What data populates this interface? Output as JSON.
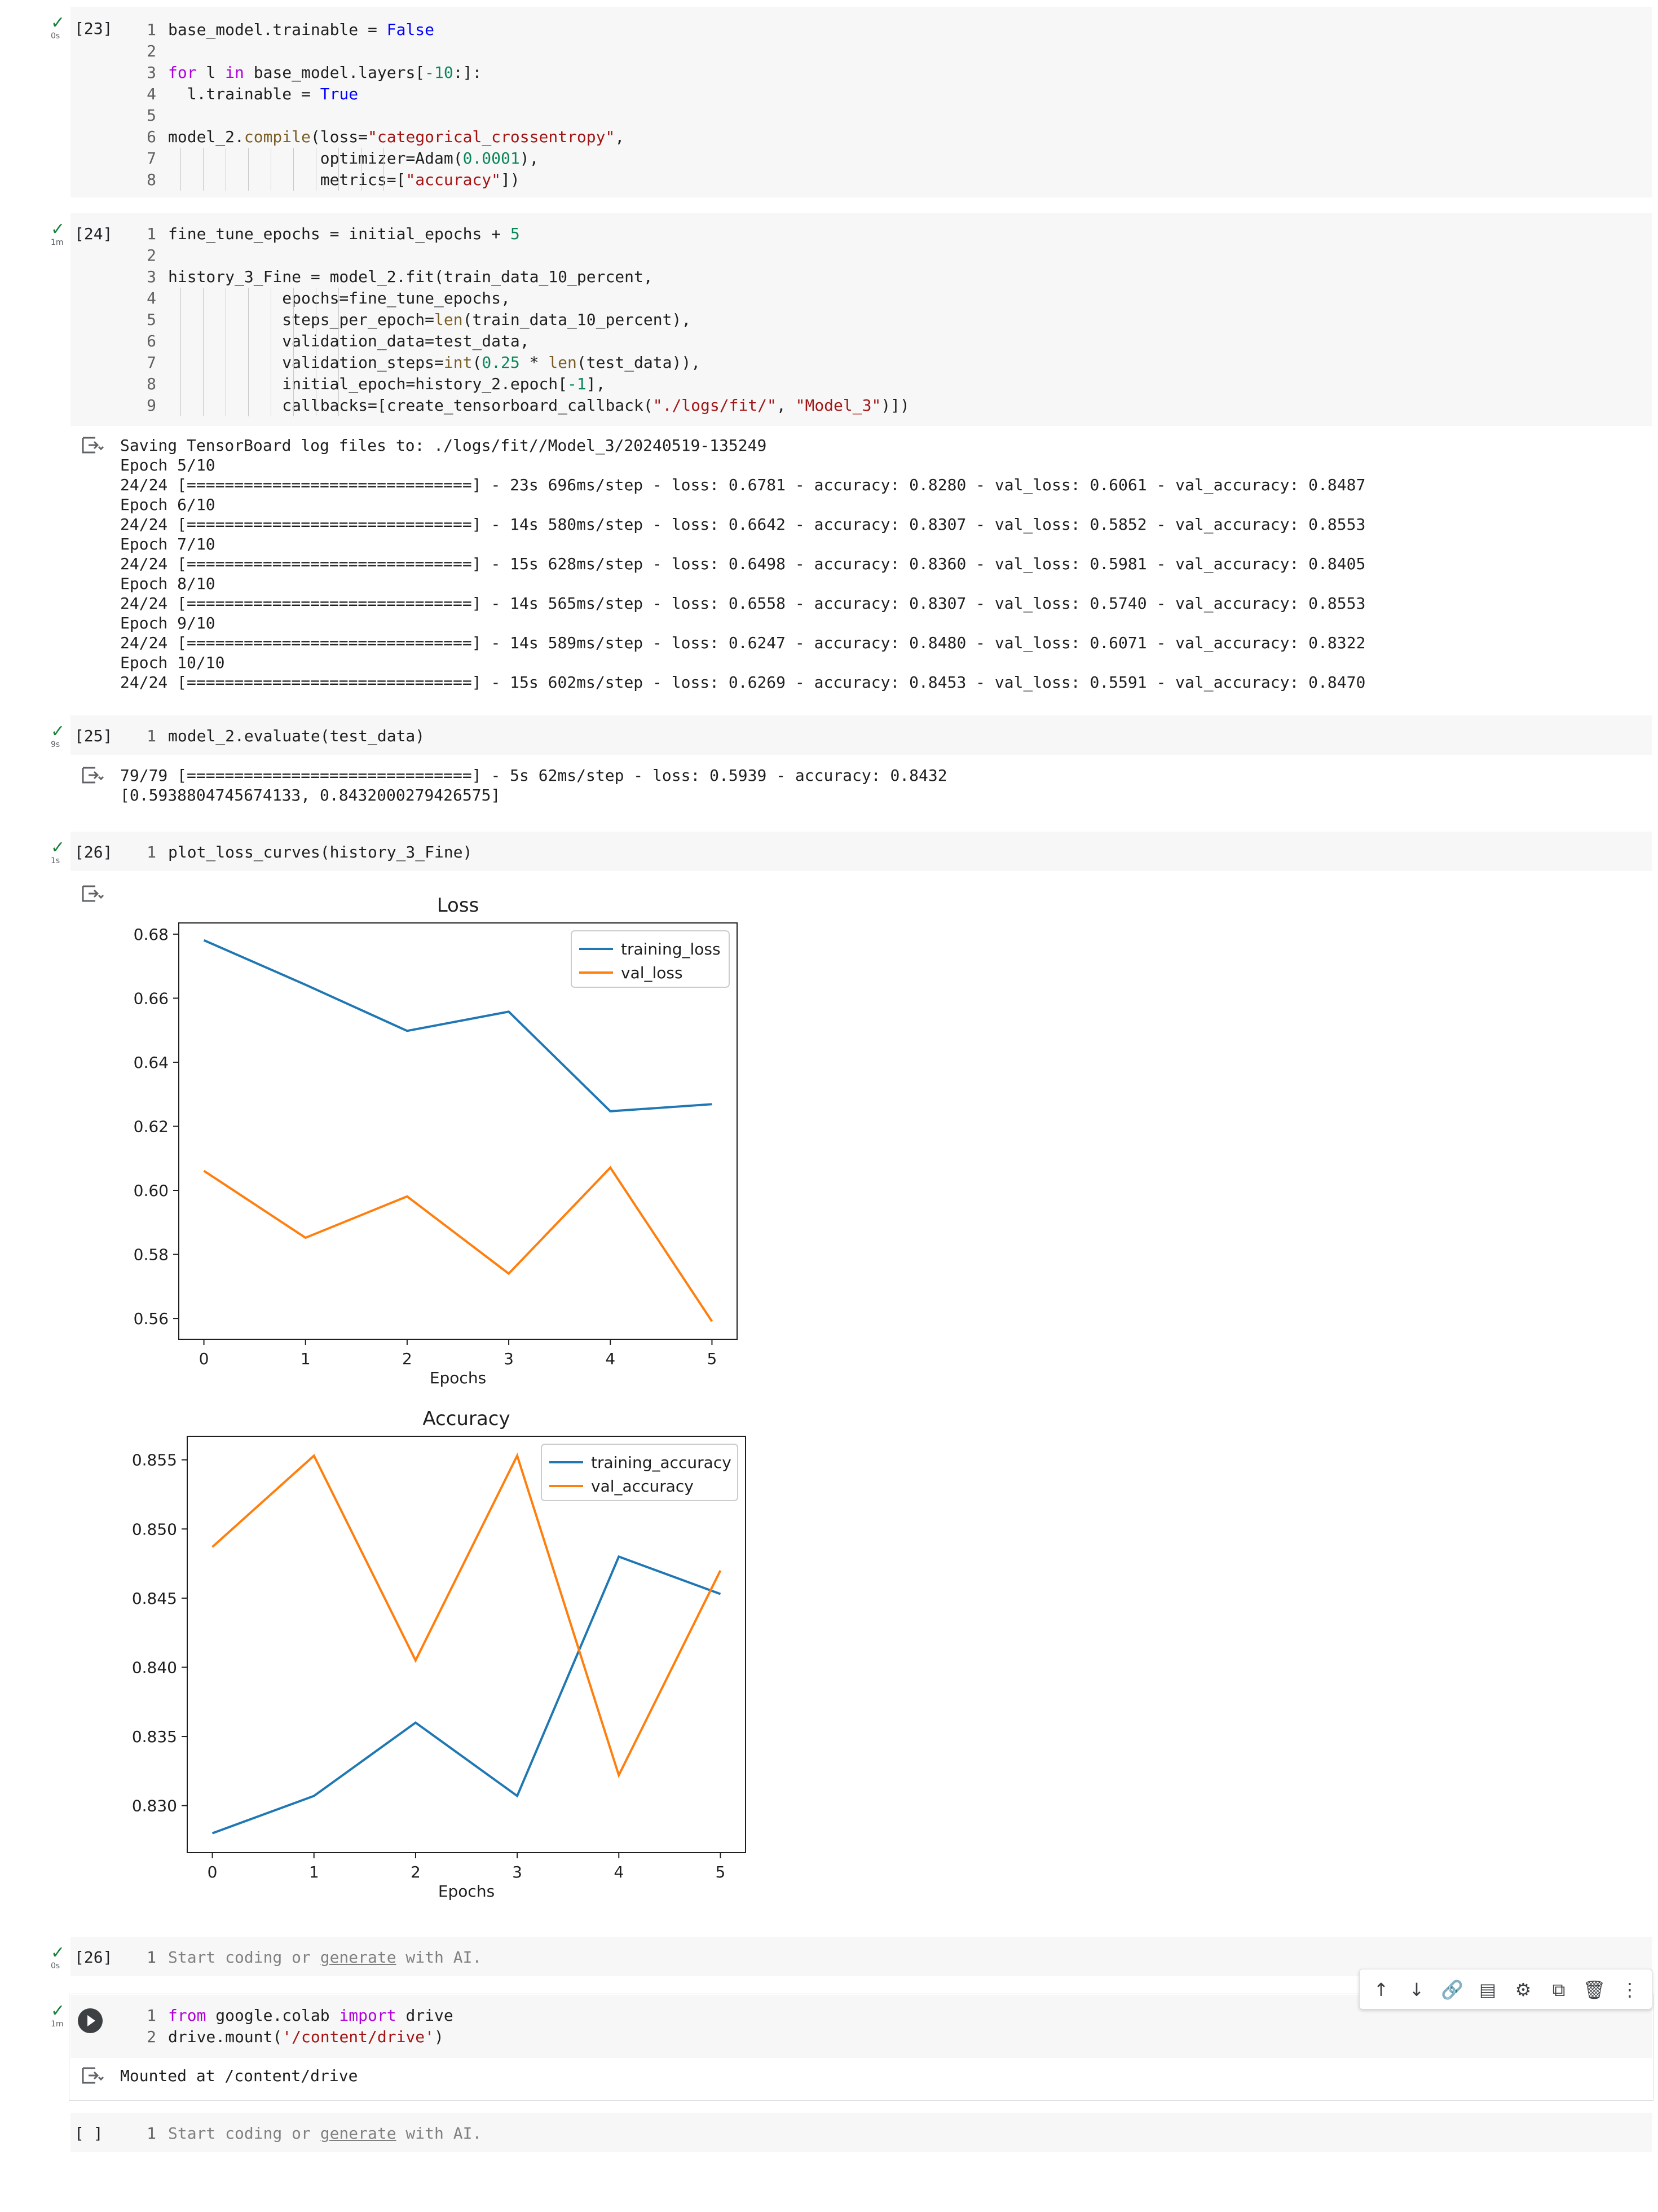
{
  "cells": [
    {
      "id": "cell-23",
      "exec_count": "[23]",
      "time": "0s",
      "lines": [
        {
          "n": "1",
          "t": [
            [
              "",
              "base_model.trainable = "
            ],
            [
              "const",
              "False"
            ]
          ]
        },
        {
          "n": "2",
          "t": []
        },
        {
          "n": "3",
          "t": [
            [
              "kw",
              "for"
            ],
            [
              "",
              " l "
            ],
            [
              "kw",
              "in"
            ],
            [
              "",
              " base_model.layers["
            ],
            [
              "num",
              "-10"
            ],
            [
              "",
              ":]:"
            ]
          ]
        },
        {
          "n": "4",
          "t": [
            [
              "",
              "  l.trainable = "
            ],
            [
              "const",
              "True"
            ]
          ]
        },
        {
          "n": "5",
          "t": []
        },
        {
          "n": "6",
          "t": [
            [
              "",
              "model_2."
            ],
            [
              "fn",
              "compile"
            ],
            [
              "",
              "(loss="
            ],
            [
              "str",
              "\"categorical_crossentropy\""
            ],
            [
              "",
              ","
            ]
          ]
        },
        {
          "n": "7",
          "t": [
            [
              "",
              "                optimizer=Adam("
            ],
            [
              "num",
              "0.0001"
            ],
            [
              "",
              "),"
            ]
          ]
        },
        {
          "n": "8",
          "t": [
            [
              "",
              "                metrics=["
            ],
            [
              "str",
              "\"accuracy\""
            ],
            [
              "",
              "])"
            ]
          ]
        }
      ]
    },
    {
      "id": "cell-24",
      "exec_count": "[24]",
      "time": "1m",
      "lines": [
        {
          "n": "1",
          "t": [
            [
              "",
              "fine_tune_epochs = initial_epochs + "
            ],
            [
              "num",
              "5"
            ]
          ]
        },
        {
          "n": "2",
          "t": []
        },
        {
          "n": "3",
          "t": [
            [
              "",
              "history_3_Fine = model_2.fit(train_data_10_percent,"
            ]
          ]
        },
        {
          "n": "4",
          "t": [
            [
              "",
              "            epochs=fine_tune_epochs,"
            ]
          ]
        },
        {
          "n": "5",
          "t": [
            [
              "",
              "            steps_per_epoch="
            ],
            [
              "fn",
              "len"
            ],
            [
              "",
              "(train_data_10_percent),"
            ]
          ]
        },
        {
          "n": "6",
          "t": [
            [
              "",
              "            validation_data=test_data,"
            ]
          ]
        },
        {
          "n": "7",
          "t": [
            [
              "",
              "            validation_steps="
            ],
            [
              "fn",
              "int"
            ],
            [
              "",
              "("
            ],
            [
              "num",
              "0.25"
            ],
            [
              "",
              " * "
            ],
            [
              "fn",
              "len"
            ],
            [
              "",
              "(test_data)),"
            ]
          ]
        },
        {
          "n": "8",
          "t": [
            [
              "",
              "            initial_epoch=history_2.epoch["
            ],
            [
              "num",
              "-1"
            ],
            [
              "",
              "],"
            ]
          ]
        },
        {
          "n": "9",
          "t": [
            [
              "",
              "            callbacks=[create_tensorboard_callback("
            ],
            [
              "str",
              "\"./logs/fit/\""
            ],
            [
              "",
              ", "
            ],
            [
              "str",
              "\"Model_3\""
            ],
            [
              "",
              ")])"
            ]
          ]
        }
      ],
      "output": [
        "Saving TensorBoard log files to: ./logs/fit//Model_3/20240519-135249",
        "Epoch 5/10",
        "24/24 [==============================] - 23s 696ms/step - loss: 0.6781 - accuracy: 0.8280 - val_loss: 0.6061 - val_accuracy: 0.8487",
        "Epoch 6/10",
        "24/24 [==============================] - 14s 580ms/step - loss: 0.6642 - accuracy: 0.8307 - val_loss: 0.5852 - val_accuracy: 0.8553",
        "Epoch 7/10",
        "24/24 [==============================] - 15s 628ms/step - loss: 0.6498 - accuracy: 0.8360 - val_loss: 0.5981 - val_accuracy: 0.8405",
        "Epoch 8/10",
        "24/24 [==============================] - 14s 565ms/step - loss: 0.6558 - accuracy: 0.8307 - val_loss: 0.5740 - val_accuracy: 0.8553",
        "Epoch 9/10",
        "24/24 [==============================] - 14s 589ms/step - loss: 0.6247 - accuracy: 0.8480 - val_loss: 0.6071 - val_accuracy: 0.8322",
        "Epoch 10/10",
        "24/24 [==============================] - 15s 602ms/step - loss: 0.6269 - accuracy: 0.8453 - val_loss: 0.5591 - val_accuracy: 0.8470"
      ]
    },
    {
      "id": "cell-25",
      "exec_count": "[25]",
      "time": "9s",
      "lines": [
        {
          "n": "1",
          "t": [
            [
              "",
              "model_2.evaluate(test_data)"
            ]
          ]
        }
      ],
      "output": [
        "79/79 [==============================] - 5s 62ms/step - loss: 0.5939 - accuracy: 0.8432",
        "[0.5938804745674133, 0.8432000279426575]"
      ]
    },
    {
      "id": "cell-26",
      "exec_count": "[26]",
      "time": "1s",
      "lines": [
        {
          "n": "1",
          "t": [
            [
              "",
              "plot_loss_curves(history_3_Fine)"
            ]
          ]
        }
      ]
    },
    {
      "id": "cell-26b",
      "exec_count": "[26]",
      "time": "0s",
      "lines": [
        {
          "n": "1",
          "t": [
            [
              "placeholder",
              "Start coding or "
            ],
            [
              "placeholder-u",
              "generate"
            ],
            [
              "placeholder",
              " with AI."
            ]
          ]
        }
      ]
    },
    {
      "id": "cell-drive",
      "exec_count": "",
      "time": "1m",
      "lines": [
        {
          "n": "1",
          "t": [
            [
              "kw",
              "from"
            ],
            [
              "",
              " google.colab "
            ],
            [
              "kw",
              "import"
            ],
            [
              "",
              " drive"
            ]
          ]
        },
        {
          "n": "2",
          "t": [
            [
              "",
              "drive.mount("
            ],
            [
              "str",
              "'/content/drive'"
            ],
            [
              "",
              ")"
            ]
          ]
        }
      ],
      "output": [
        "Mounted at /content/drive"
      ]
    },
    {
      "id": "cell-empty",
      "exec_count": "[ ]",
      "time": "",
      "lines": [
        {
          "n": "1",
          "t": [
            [
              "placeholder",
              "Start coding or "
            ],
            [
              "placeholder-u",
              "generate"
            ],
            [
              "placeholder",
              " with AI."
            ]
          ]
        }
      ]
    }
  ],
  "chart_data": [
    {
      "type": "line",
      "title": "Loss",
      "xlabel": "Epochs",
      "ylabel": "",
      "x": [
        0,
        1,
        2,
        3,
        4,
        5
      ],
      "xticks": [
        "0",
        "1",
        "2",
        "3",
        "4",
        "5"
      ],
      "yticks": [
        "0.56",
        "0.58",
        "0.60",
        "0.62",
        "0.64",
        "0.66",
        "0.68"
      ],
      "ylim": [
        0.5535,
        0.6835
      ],
      "series": [
        {
          "name": "training_loss",
          "color": "#1f77b4",
          "values": [
            0.6781,
            0.6642,
            0.6498,
            0.6558,
            0.6247,
            0.6269
          ]
        },
        {
          "name": "val_loss",
          "color": "#ff7f0e",
          "values": [
            0.6061,
            0.5852,
            0.5981,
            0.574,
            0.6071,
            0.5591
          ]
        }
      ],
      "legend": "upper right",
      "grid": false
    },
    {
      "type": "line",
      "title": "Accuracy",
      "xlabel": "Epochs",
      "ylabel": "",
      "x": [
        0,
        1,
        2,
        3,
        4,
        5
      ],
      "xticks": [
        "0",
        "1",
        "2",
        "3",
        "4",
        "5"
      ],
      "yticks": [
        "0.830",
        "0.835",
        "0.840",
        "0.845",
        "0.850",
        "0.855"
      ],
      "ylim": [
        0.8266,
        0.8567
      ],
      "series": [
        {
          "name": "training_accuracy",
          "color": "#1f77b4",
          "values": [
            0.828,
            0.8307,
            0.836,
            0.8307,
            0.848,
            0.8453
          ]
        },
        {
          "name": "val_accuracy",
          "color": "#ff7f0e",
          "values": [
            0.8487,
            0.8553,
            0.8405,
            0.8553,
            0.8322,
            0.847
          ]
        }
      ],
      "legend": "upper right",
      "grid": false
    }
  ],
  "toolbar": {
    "buttons": [
      {
        "name": "move-cell-up-icon",
        "glyph": "↑"
      },
      {
        "name": "move-cell-down-icon",
        "glyph": "↓"
      },
      {
        "name": "link-icon",
        "glyph": "🔗"
      },
      {
        "name": "comment-icon",
        "glyph": "▤"
      },
      {
        "name": "settings-gear-icon",
        "glyph": "⚙"
      },
      {
        "name": "mirror-cell-icon",
        "glyph": "⧉"
      },
      {
        "name": "delete-icon",
        "glyph": "🗑"
      },
      {
        "name": "more-options-icon",
        "glyph": "⋮"
      }
    ]
  },
  "status": {
    "check_glyph": "✓"
  }
}
